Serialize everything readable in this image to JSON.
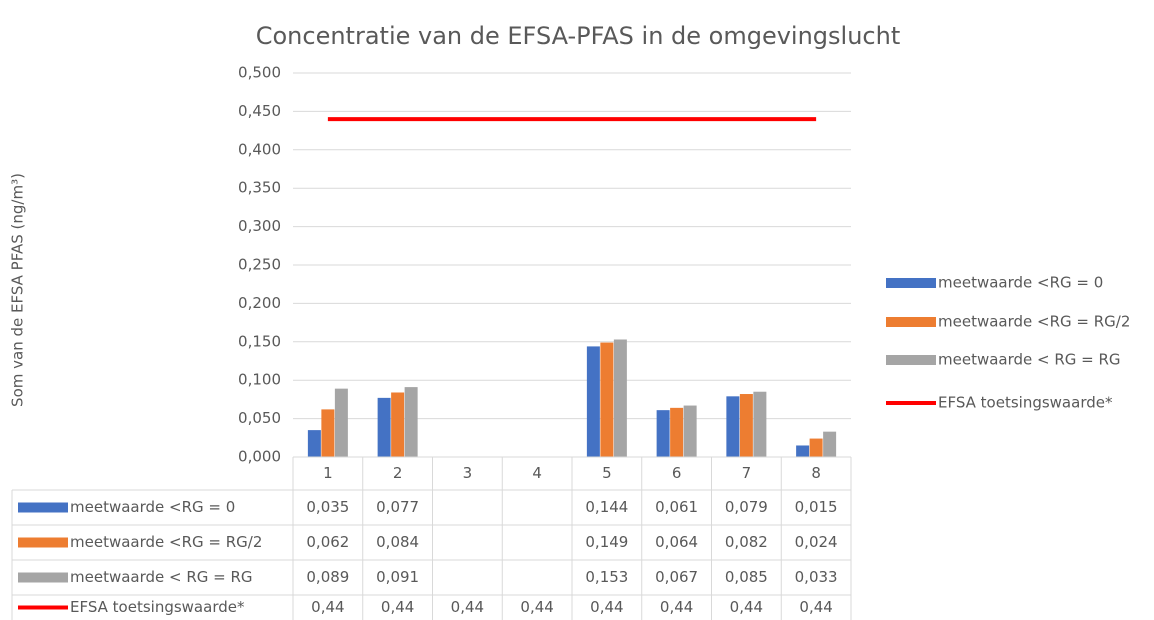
{
  "chart_data": {
    "type": "bar",
    "title": "Concentratie van de EFSA-PFAS in de omgevingslucht",
    "y_label": "Som van de EFSA PFAS (ng/m³)",
    "categories": [
      "1",
      "2",
      "3",
      "4",
      "5",
      "6",
      "7",
      "8"
    ],
    "series": [
      {
        "name": "meetwaarde <RG = 0",
        "color": "#4472c4",
        "type": "bar",
        "values": [
          0.035,
          0.077,
          null,
          null,
          0.144,
          0.061,
          0.079,
          0.015
        ],
        "value_labels": [
          "0,035",
          "0,077",
          null,
          null,
          "0,144",
          "0,061",
          "0,079",
          "0,015"
        ]
      },
      {
        "name": "meetwaarde <RG = RG/2",
        "color": "#ed7d31",
        "type": "bar",
        "values": [
          0.062,
          0.084,
          null,
          null,
          0.149,
          0.064,
          0.082,
          0.024
        ],
        "value_labels": [
          "0,062",
          "0,084",
          null,
          null,
          "0,149",
          "0,064",
          "0,082",
          "0,024"
        ]
      },
      {
        "name": "meetwaarde < RG = RG",
        "color": "#a5a5a5",
        "type": "bar",
        "values": [
          0.089,
          0.091,
          null,
          null,
          0.153,
          0.067,
          0.085,
          0.033
        ],
        "value_labels": [
          "0,089",
          "0,091",
          null,
          null,
          "0,153",
          "0,067",
          "0,085",
          "0,033"
        ]
      },
      {
        "name": "EFSA toetsingswaarde*",
        "color": "#ff0000",
        "type": "line",
        "values": [
          0.44,
          0.44,
          0.44,
          0.44,
          0.44,
          0.44,
          0.44,
          0.44
        ],
        "value_labels": [
          "0,44",
          "0,44",
          "0,44",
          "0,44",
          "0,44",
          "0,44",
          "0,44",
          "0,44"
        ]
      }
    ],
    "ylim": [
      0,
      0.5
    ],
    "yticks": [
      {
        "value": 0,
        "label": "0,000"
      },
      {
        "value": 0.05,
        "label": "0,050"
      },
      {
        "value": 0.1,
        "label": "0,100"
      },
      {
        "value": 0.15,
        "label": "0,150"
      },
      {
        "value": 0.2,
        "label": "0,200"
      },
      {
        "value": 0.25,
        "label": "0,250"
      },
      {
        "value": 0.3,
        "label": "0,300"
      },
      {
        "value": 0.35,
        "label": "0,350"
      },
      {
        "value": 0.4,
        "label": "0,400"
      },
      {
        "value": 0.45,
        "label": "0,450"
      },
      {
        "value": 0.5,
        "label": "0,500"
      }
    ],
    "grid": true,
    "legend": "right",
    "data_table": true
  }
}
